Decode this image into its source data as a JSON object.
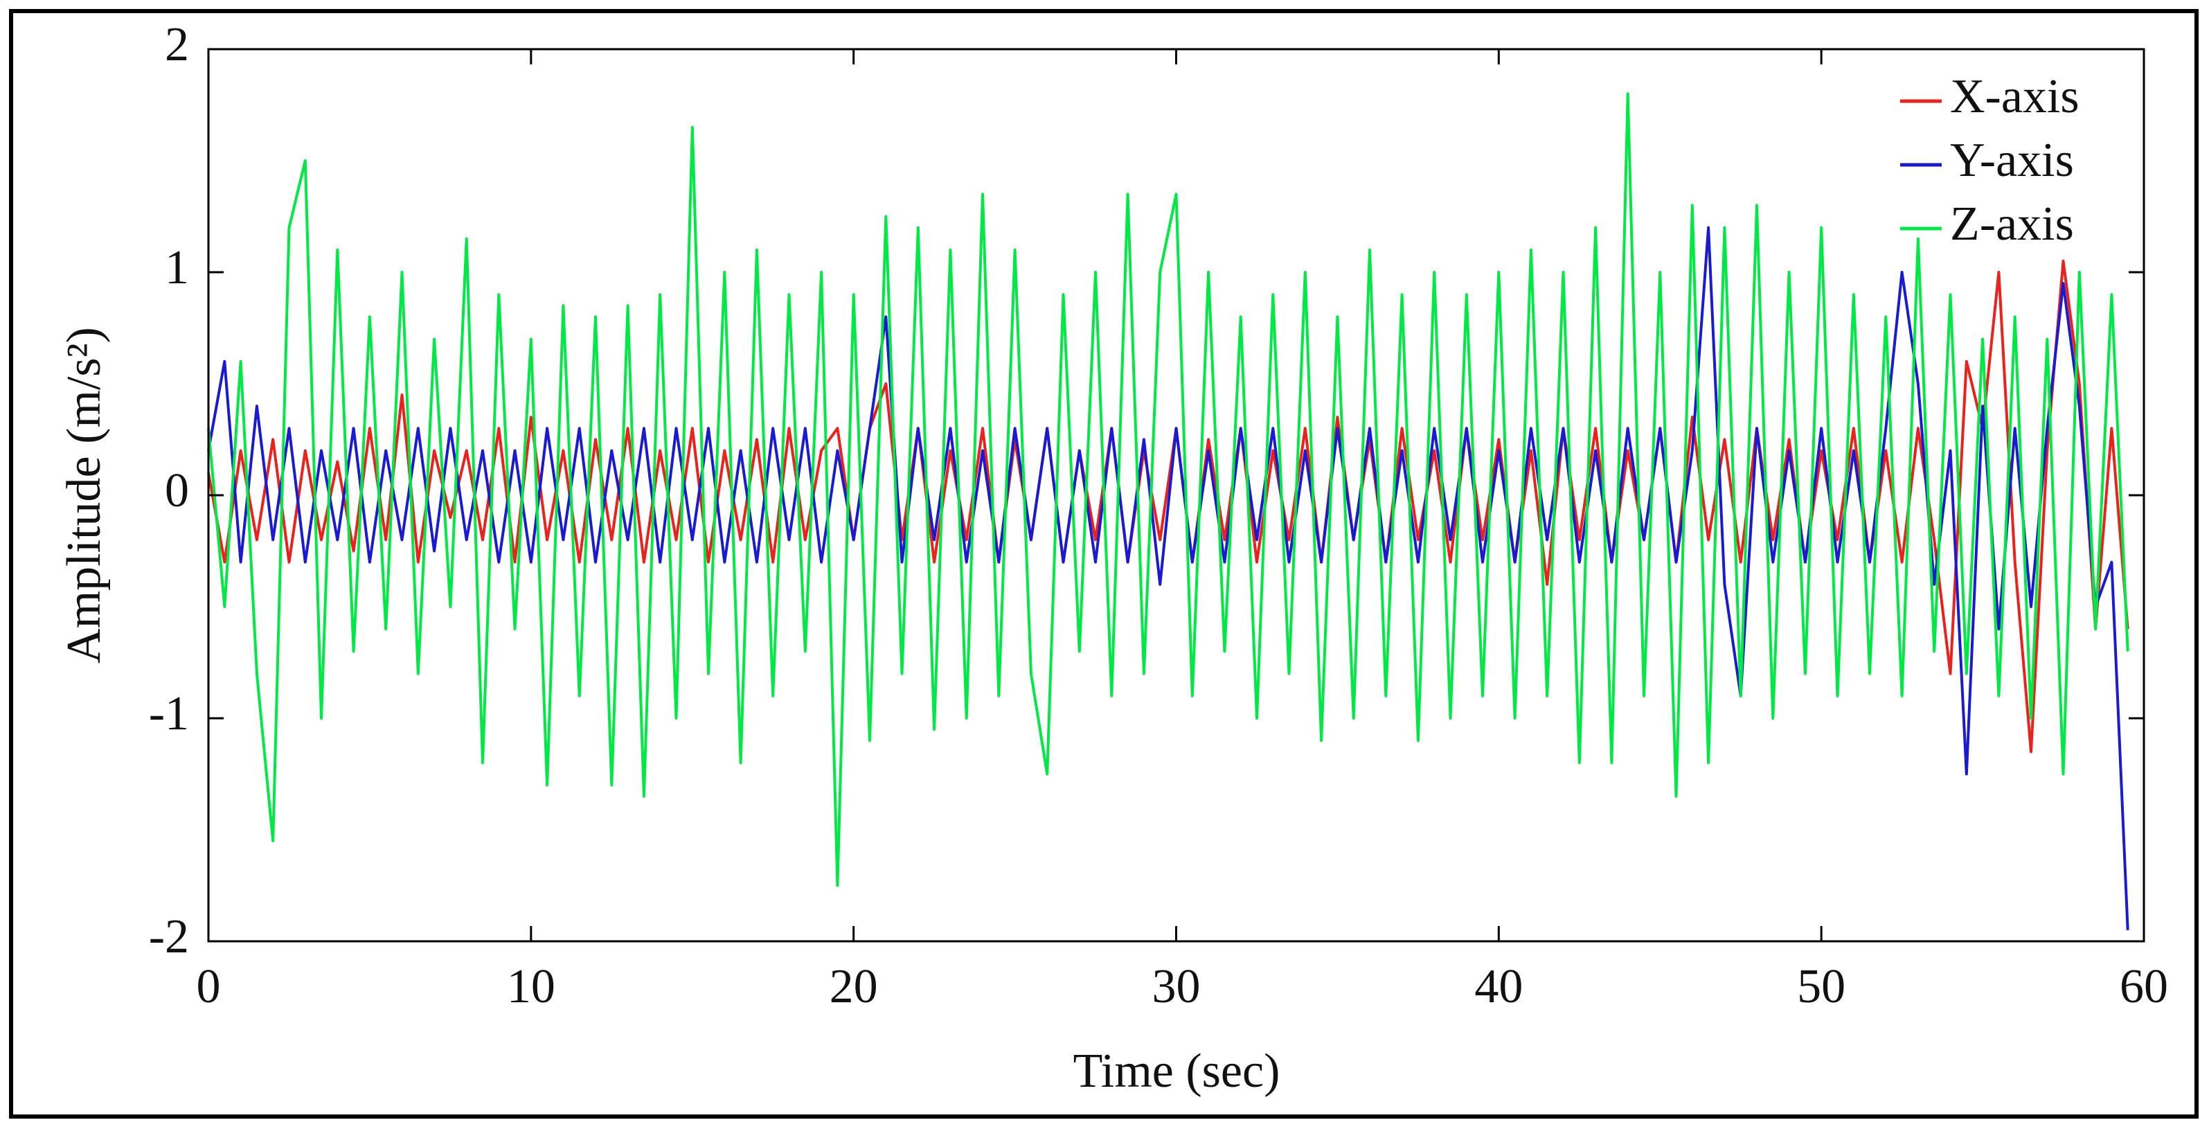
{
  "chart_data": {
    "type": "line",
    "x_label": "Time (sec)",
    "y_label": "Amplitude (m/s²)",
    "x": [
      0,
      0.5,
      1,
      1.5,
      2,
      2.5,
      3,
      3.5,
      4,
      4.5,
      5,
      5.5,
      6,
      6.5,
      7,
      7.5,
      8,
      8.5,
      9,
      9.5,
      10,
      10.5,
      11,
      11.5,
      12,
      12.5,
      13,
      13.5,
      14,
      14.5,
      15,
      15.5,
      16,
      16.5,
      17,
      17.5,
      18,
      18.5,
      19,
      19.5,
      20,
      20.5,
      21,
      21.5,
      22,
      22.5,
      23,
      23.5,
      24,
      24.5,
      25,
      25.5,
      26,
      26.5,
      27,
      27.5,
      28,
      28.5,
      29,
      29.5,
      30,
      30.5,
      31,
      31.5,
      32,
      32.5,
      33,
      33.5,
      34,
      34.5,
      35,
      35.5,
      36,
      36.5,
      37,
      37.5,
      38,
      38.5,
      39,
      39.5,
      40,
      40.5,
      41,
      41.5,
      42,
      42.5,
      43,
      43.5,
      44,
      44.5,
      45,
      45.5,
      46,
      46.5,
      47,
      47.5,
      48,
      48.5,
      49,
      49.5,
      50,
      50.5,
      51,
      51.5,
      52,
      52.5,
      53,
      53.5,
      54,
      54.5,
      55,
      55.5,
      56,
      56.5,
      57,
      57.5,
      58,
      58.5,
      59,
      59.5
    ],
    "series": [
      {
        "name": "X-axis",
        "color": "#e8231d",
        "values": [
          0.1,
          -0.3,
          0.2,
          -0.2,
          0.25,
          -0.3,
          0.2,
          -0.2,
          0.15,
          -0.25,
          0.3,
          -0.2,
          0.45,
          -0.3,
          0.2,
          -0.1,
          0.2,
          -0.2,
          0.3,
          -0.3,
          0.35,
          -0.2,
          0.2,
          -0.3,
          0.25,
          -0.2,
          0.3,
          -0.3,
          0.2,
          -0.2,
          0.3,
          -0.3,
          0.2,
          -0.2,
          0.25,
          -0.3,
          0.3,
          -0.2,
          0.2,
          0.3,
          -0.2,
          0.3,
          0.5,
          -0.2,
          0.3,
          -0.3,
          0.2,
          -0.2,
          0.3,
          -0.3,
          0.25,
          -0.2,
          0.3,
          -0.3,
          0.2,
          -0.2,
          0.3,
          -0.3,
          0.2,
          -0.2,
          0.3,
          -0.3,
          0.25,
          -0.2,
          0.3,
          -0.3,
          0.2,
          -0.2,
          0.3,
          -0.3,
          0.35,
          -0.2,
          0.25,
          -0.3,
          0.3,
          -0.2,
          0.2,
          -0.3,
          0.3,
          -0.2,
          0.25,
          -0.3,
          0.2,
          -0.4,
          0.3,
          -0.2,
          0.3,
          -0.3,
          0.2,
          -0.2,
          0.3,
          -0.3,
          0.35,
          -0.2,
          0.25,
          -0.3,
          0.3,
          -0.2,
          0.25,
          -0.3,
          0.2,
          -0.2,
          0.3,
          -0.3,
          0.2,
          -0.3,
          0.3,
          -0.2,
          -0.8,
          0.6,
          0.3,
          1.0,
          -0.3,
          -1.15,
          0.2,
          1.05,
          0.5,
          -0.6,
          0.3,
          -0.6
        ]
      },
      {
        "name": "Y-axis",
        "color": "#1a1ad0",
        "values": [
          0.2,
          0.6,
          -0.3,
          0.4,
          -0.2,
          0.3,
          -0.3,
          0.2,
          -0.2,
          0.3,
          -0.3,
          0.2,
          -0.2,
          0.3,
          -0.25,
          0.3,
          -0.2,
          0.2,
          -0.3,
          0.2,
          -0.3,
          0.3,
          -0.2,
          0.3,
          -0.3,
          0.2,
          -0.2,
          0.3,
          -0.3,
          0.3,
          -0.2,
          0.3,
          -0.3,
          0.2,
          -0.3,
          0.3,
          -0.2,
          0.3,
          -0.3,
          0.2,
          -0.2,
          0.3,
          0.8,
          -0.3,
          0.3,
          -0.2,
          0.3,
          -0.3,
          0.2,
          -0.3,
          0.3,
          -0.2,
          0.3,
          -0.3,
          0.2,
          -0.3,
          0.3,
          -0.3,
          0.25,
          -0.4,
          0.3,
          -0.3,
          0.2,
          -0.3,
          0.3,
          -0.2,
          0.3,
          -0.3,
          0.2,
          -0.3,
          0.3,
          -0.2,
          0.3,
          -0.3,
          0.2,
          -0.3,
          0.3,
          -0.2,
          0.3,
          -0.3,
          0.2,
          -0.3,
          0.3,
          -0.2,
          0.3,
          -0.3,
          0.2,
          -0.3,
          0.3,
          -0.2,
          0.3,
          -0.3,
          0.2,
          1.2,
          -0.4,
          -0.9,
          0.3,
          -0.3,
          0.2,
          -0.3,
          0.3,
          -0.3,
          0.2,
          -0.3,
          0.3,
          1.0,
          0.5,
          -0.4,
          0.2,
          -1.25,
          0.4,
          -0.6,
          0.3,
          -0.5,
          0.3,
          0.95,
          0.4,
          -0.5,
          -0.3,
          -1.95
        ]
      },
      {
        "name": "Z-axis",
        "color": "#00e845",
        "values": [
          0.3,
          -0.5,
          0.6,
          -0.8,
          -1.55,
          1.2,
          1.5,
          -1.0,
          1.1,
          -0.7,
          0.8,
          -0.6,
          1.0,
          -0.8,
          0.7,
          -0.5,
          1.15,
          -1.2,
          0.9,
          -0.6,
          0.7,
          -1.3,
          0.85,
          -0.9,
          0.8,
          -1.3,
          0.85,
          -1.35,
          0.9,
          -1.0,
          1.65,
          -0.8,
          1.0,
          -1.2,
          1.1,
          -0.9,
          0.9,
          -0.7,
          1.0,
          -1.75,
          0.9,
          -1.1,
          1.25,
          -0.8,
          1.2,
          -1.05,
          1.1,
          -1.0,
          1.35,
          -0.9,
          1.1,
          -0.8,
          -1.25,
          0.9,
          -0.7,
          1.0,
          -0.9,
          1.35,
          -0.8,
          1.0,
          1.35,
          -0.9,
          1.0,
          -0.7,
          0.8,
          -1.0,
          0.9,
          -0.8,
          1.0,
          -1.1,
          0.8,
          -1.0,
          1.1,
          -0.9,
          0.9,
          -1.1,
          1.0,
          -1.0,
          0.9,
          -0.9,
          1.0,
          -1.0,
          1.1,
          -0.9,
          1.0,
          -1.2,
          1.2,
          -1.2,
          1.8,
          -0.9,
          1.0,
          -1.35,
          1.3,
          -1.2,
          1.2,
          -0.9,
          1.3,
          -1.0,
          1.0,
          -0.8,
          1.2,
          -0.9,
          0.9,
          -0.8,
          0.8,
          -0.9,
          1.15,
          -0.7,
          0.9,
          -0.8,
          0.7,
          -0.9,
          0.8,
          -1.0,
          0.7,
          -1.25,
          1.0,
          -0.6,
          0.9,
          -0.7
        ]
      }
    ],
    "xlim": [
      0,
      60
    ],
    "xticks": [
      0,
      10,
      20,
      30,
      40,
      50,
      60
    ],
    "ylim": [
      -2,
      2
    ],
    "yticks": [
      -2,
      -1,
      0,
      1,
      2
    ],
    "legend": "upper right"
  }
}
